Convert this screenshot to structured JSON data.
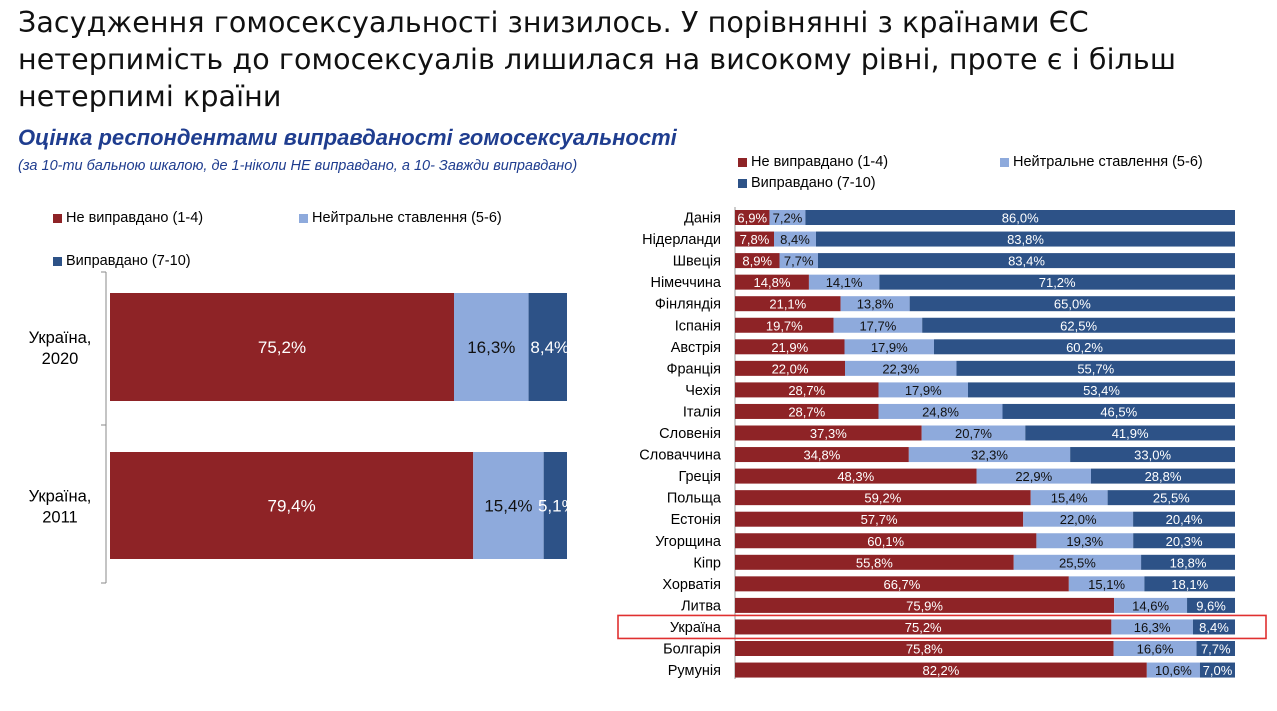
{
  "page": {
    "title_line1": "Засудження гомосексуальності знизилось. У порівнянні з країнами ЄС",
    "title_line2": "нетерпимість до гомосексуалів лишилася на високому рівні, проте є і більш",
    "title_line3": "нетерпимі країни",
    "subtitle": "Оцінка респондентами виправданості гомосексуальності",
    "subnote": "(за 10-ти бальною шкалою, де 1-ніколи НЕ виправдано, а 10- Завжди виправдано)"
  },
  "colors": {
    "negative": "#8e2326",
    "neutral": "#8eaadc",
    "positive": "#2d5287",
    "highlight": "#e03030"
  },
  "chart_data": [
    {
      "type": "bar",
      "orientation": "horizontal",
      "stacked": true,
      "categories": [
        "Україна, 2020",
        "Україна, 2011"
      ],
      "series": [
        {
          "name": "Не виправдано (1-4)",
          "values": [
            75.2,
            79.4
          ],
          "labels": [
            "75,2%",
            "79,4%"
          ]
        },
        {
          "name": "Нейтральне ставлення (5-6)",
          "values": [
            16.3,
            15.4
          ],
          "labels": [
            "16,3%",
            "15,4%"
          ]
        },
        {
          "name": "Виправдано (7-10)",
          "values": [
            8.4,
            5.1
          ],
          "labels": [
            "8,4%",
            "5,1%"
          ]
        }
      ],
      "legend_position": "top"
    },
    {
      "type": "bar",
      "orientation": "horizontal",
      "stacked": true,
      "categories": [
        "Данія",
        "Нідерланди",
        "Швеція",
        "Німеччина",
        "Фінляндія",
        "Іспанія",
        "Австрія",
        "Франція",
        "Чехія",
        "Італія",
        "Словенія",
        "Словаччина",
        "Греція",
        "Польща",
        "Естонія",
        "Угорщина",
        "Кіпр",
        "Хорватія",
        "Литва",
        "Україна",
        "Болгарія",
        "Румунія"
      ],
      "highlight_category": "Україна",
      "series": [
        {
          "name": "Не виправдано (1-4)",
          "values": [
            6.9,
            7.8,
            8.9,
            14.8,
            21.1,
            19.7,
            21.9,
            22.0,
            28.7,
            28.7,
            37.3,
            34.8,
            48.3,
            59.2,
            57.7,
            60.1,
            55.8,
            66.7,
            75.9,
            75.2,
            75.8,
            82.2
          ],
          "labels": [
            "6,9%",
            "7,8%",
            "8,9%",
            "14,8%",
            "21,1%",
            "19,7%",
            "21,9%",
            "22,0%",
            "28,7%",
            "28,7%",
            "37,3%",
            "34,8%",
            "48,3%",
            "59,2%",
            "57,7%",
            "60,1%",
            "55,8%",
            "66,7%",
            "75,9%",
            "75,2%",
            "75,8%",
            "82,2%"
          ]
        },
        {
          "name": "Нейтральне ставлення (5-6)",
          "values": [
            7.2,
            8.4,
            7.7,
            14.1,
            13.8,
            17.7,
            17.9,
            22.3,
            17.9,
            24.8,
            20.7,
            32.3,
            22.9,
            15.4,
            22.0,
            19.3,
            25.5,
            15.1,
            14.6,
            16.3,
            16.6,
            10.6
          ],
          "labels": [
            "7,2%",
            "8,4%",
            "7,7%",
            "14,1%",
            "13,8%",
            "17,7%",
            "17,9%",
            "22,3%",
            "17,9%",
            "24,8%",
            "20,7%",
            "32,3%",
            "22,9%",
            "15,4%",
            "22,0%",
            "19,3%",
            "25,5%",
            "15,1%",
            "14,6%",
            "16,3%",
            "16,6%",
            "10,6%"
          ]
        },
        {
          "name": "Виправдано (7-10)",
          "values": [
            86.0,
            83.8,
            83.4,
            71.2,
            65.0,
            62.5,
            60.2,
            55.7,
            53.4,
            46.5,
            41.9,
            33.0,
            28.8,
            25.5,
            20.4,
            20.3,
            18.8,
            18.1,
            9.6,
            8.4,
            7.7,
            7.0
          ],
          "labels": [
            "86,0%",
            "83,8%",
            "83,4%",
            "71,2%",
            "65,0%",
            "62,5%",
            "60,2%",
            "55,7%",
            "53,4%",
            "46,5%",
            "41,9%",
            "33,0%",
            "28,8%",
            "25,5%",
            "20,4%",
            "20,3%",
            "18,8%",
            "18,1%",
            "9,6%",
            "8,4%",
            "7,7%",
            "7,0%"
          ]
        }
      ],
      "legend_position": "top"
    }
  ]
}
